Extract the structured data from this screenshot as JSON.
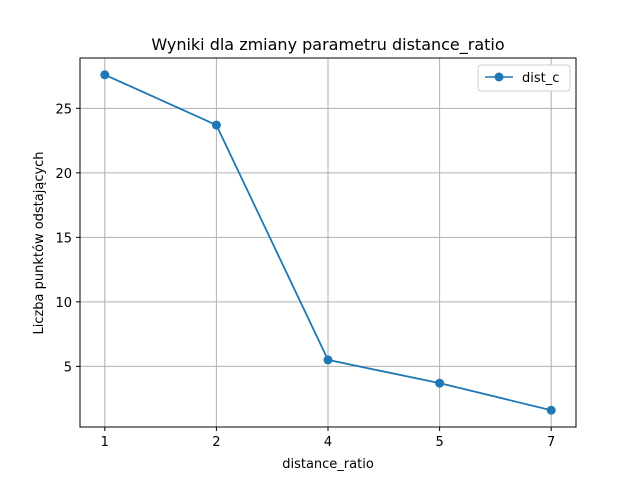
{
  "chart_data": {
    "type": "line",
    "title": "Wyniki dla zmiany parametru distance_ratio",
    "xlabel": "distance_ratio",
    "ylabel": "Liczba punktów odstających",
    "categories": [
      "1",
      "2",
      "4",
      "5",
      "7"
    ],
    "series": [
      {
        "name": "dist_c",
        "values": [
          27.6,
          23.7,
          5.5,
          3.7,
          1.6
        ],
        "color": "#1f77b4",
        "marker": "circle"
      }
    ],
    "yticks": [
      5,
      10,
      15,
      20,
      25
    ],
    "ylim": [
      0.3,
      28.9
    ],
    "grid": true,
    "legend_position": "top-right"
  }
}
